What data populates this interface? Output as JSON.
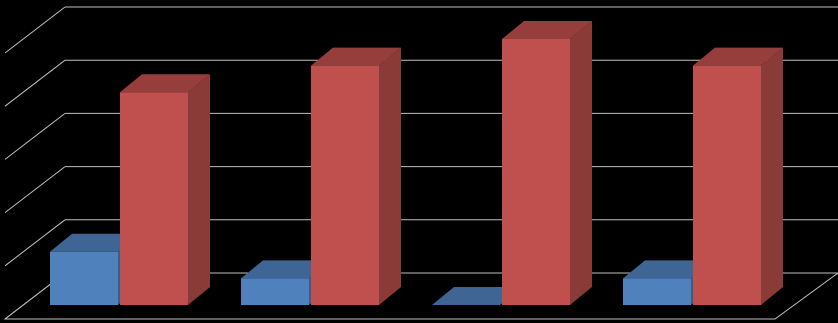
{
  "chart_data": {
    "type": "bar3d",
    "categories": [
      null,
      null,
      null,
      null
    ],
    "series": [
      {
        "color": "#4f81bd",
        "values": [
          1.0,
          0.5,
          0,
          0.5
        ]
      },
      {
        "color": "#c0504d",
        "values": [
          4.0,
          4.5,
          5.0,
          4.5
        ]
      }
    ],
    "ylim": [
      0,
      5
    ],
    "yticks": [
      0,
      1,
      2,
      3,
      4,
      5
    ],
    "grid": true
  }
}
